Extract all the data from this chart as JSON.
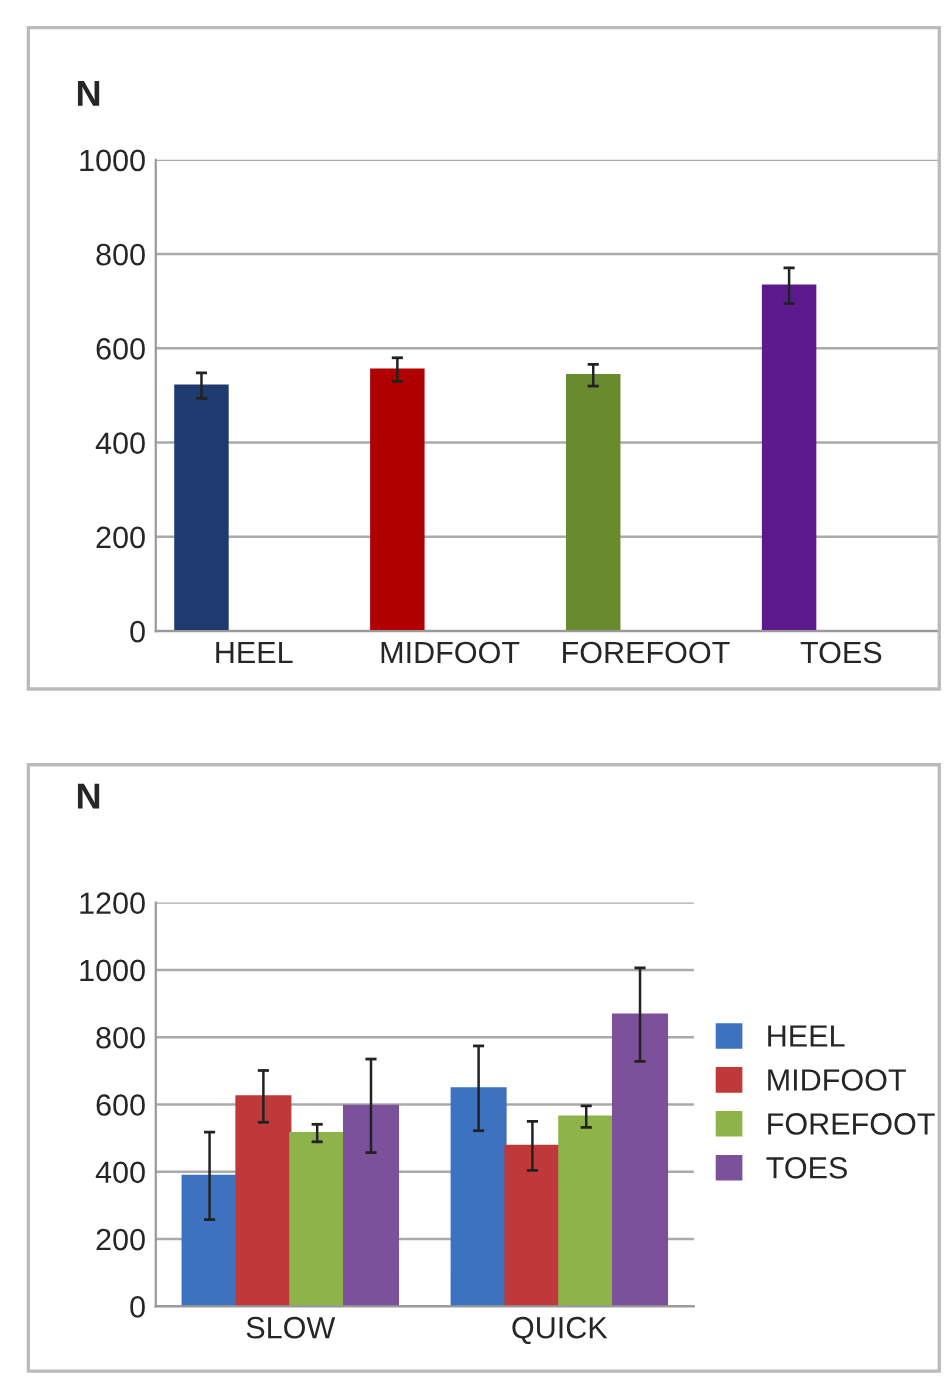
{
  "chart_data": [
    {
      "type": "bar",
      "ylabel": "N",
      "categories": [
        "HEEL",
        "MIDFOOT",
        "FOREFOOT",
        "TOES"
      ],
      "ylim": [
        0,
        1000
      ],
      "yticks": [
        0,
        200,
        400,
        600,
        800,
        1000
      ],
      "grid": "y",
      "legend": false,
      "series": [
        {
          "colors": [
            "#1f3a6e",
            "#b00000",
            "#6a8a2e",
            "#5c1a8c"
          ],
          "values": [
            521,
            555,
            543,
            733
          ],
          "errors": [
            27,
            25,
            23,
            38
          ]
        },
        {
          "color": "#c08080",
          "values": [
            0,
            0,
            0,
            0
          ]
        },
        {
          "color": "#90b070",
          "values": [
            0,
            0,
            0,
            0
          ]
        }
      ]
    },
    {
      "type": "bar",
      "ylabel": "N",
      "categories": [
        "SLOW",
        "QUICK"
      ],
      "ylim": [
        0,
        1200
      ],
      "yticks": [
        0,
        200,
        400,
        600,
        800,
        1000,
        1200
      ],
      "grid": "y",
      "legend": "right",
      "series": [
        {
          "name": "HEEL",
          "color": "#3d72c0",
          "values": [
            388,
            648
          ],
          "errors": [
            130,
            126
          ]
        },
        {
          "name": "MIDFOOT",
          "color": "#c0393a",
          "values": [
            624,
            477
          ],
          "errors": [
            77,
            73
          ]
        },
        {
          "name": "FOREFOOT",
          "color": "#8db34a",
          "values": [
            515,
            564
          ],
          "errors": [
            26,
            32
          ]
        },
        {
          "name": "TOES",
          "color": "#7a519a",
          "values": [
            596,
            867
          ],
          "errors": [
            139,
            139
          ]
        }
      ]
    }
  ]
}
